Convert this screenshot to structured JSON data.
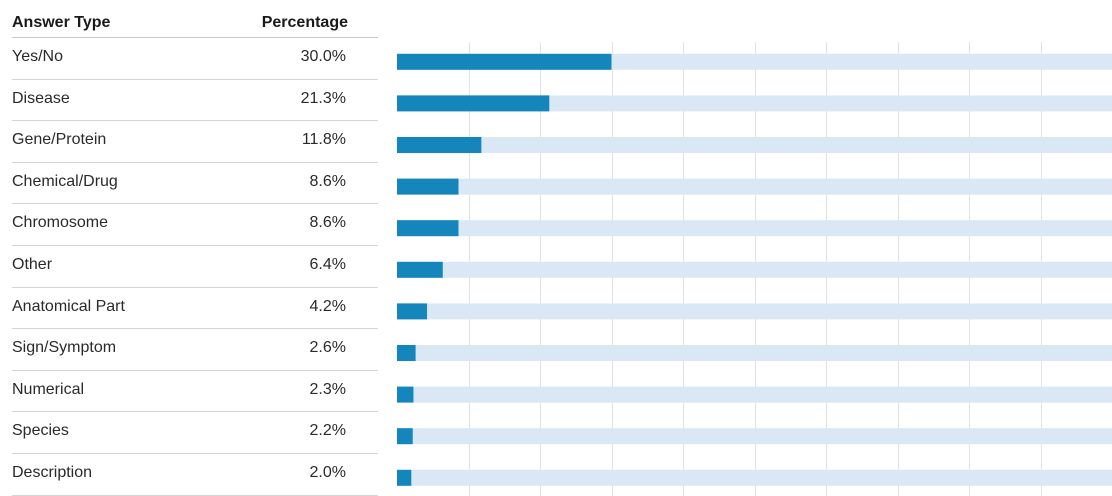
{
  "table": {
    "header_type": "Answer Type",
    "header_percentage": "Percentage",
    "rows": [
      {
        "label": "Yes/No",
        "value_text": "30.0%"
      },
      {
        "label": "Disease",
        "value_text": "21.3%"
      },
      {
        "label": "Gene/Protein",
        "value_text": "11.8%"
      },
      {
        "label": "Chemical/Drug",
        "value_text": "8.6%"
      },
      {
        "label": "Chromosome",
        "value_text": "8.6%"
      },
      {
        "label": "Other",
        "value_text": "6.4%"
      },
      {
        "label": "Anatomical Part",
        "value_text": "4.2%"
      },
      {
        "label": "Sign/Symptom",
        "value_text": "2.6%"
      },
      {
        "label": "Numerical",
        "value_text": "2.3%"
      },
      {
        "label": "Species",
        "value_text": "2.2%"
      },
      {
        "label": "Description",
        "value_text": "2.0%"
      }
    ]
  },
  "chart_data": {
    "type": "bar",
    "orientation": "horizontal",
    "categories": [
      "Yes/No",
      "Disease",
      "Gene/Protein",
      "Chemical/Drug",
      "Chromosome",
      "Other",
      "Anatomical Part",
      "Sign/Symptom",
      "Numerical",
      "Species",
      "Description"
    ],
    "values": [
      30.0,
      21.3,
      11.8,
      8.6,
      8.6,
      6.4,
      4.2,
      2.6,
      2.3,
      2.2,
      2.0
    ],
    "xlim": [
      0,
      100
    ],
    "grid": true,
    "colors": {
      "bar": "#1486bb",
      "track": "#dae8f6",
      "grid": "#e3e3e3"
    }
  }
}
